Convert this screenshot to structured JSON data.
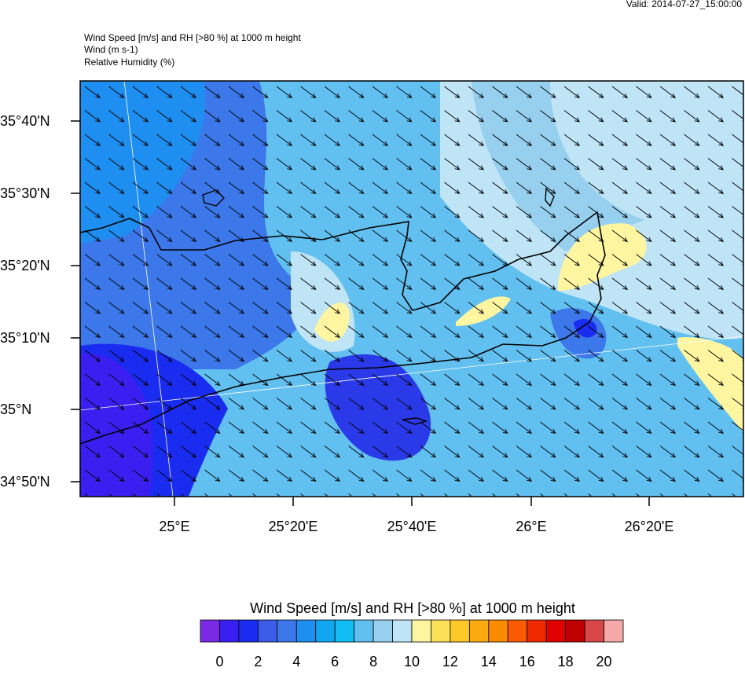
{
  "header": {
    "valid": "Valid: 2014-07-27_15:00:00",
    "lines": [
      "Wind Speed [m/s] and RH [>80 %] at 1000 m height",
      "Wind   (m s-1)",
      "Relative Humidity   (%)"
    ]
  },
  "axes": {
    "lat_labels": [
      "35°40'N",
      "35°30'N",
      "35°20'N",
      "35°10'N",
      "35°N",
      "34°50'N"
    ],
    "lon_labels": [
      "25°E",
      "25°20'E",
      "25°40'E",
      "26°E",
      "26°20'E"
    ]
  },
  "colorbar": {
    "title": "Wind Speed [m/s] and RH [>80 %] at 1000 m height",
    "colors": [
      "#7b2be6",
      "#3a1ff0",
      "#1a2cf0",
      "#3a5ce6",
      "#3d78ea",
      "#1e8ef0",
      "#12a6f0",
      "#12bdf5",
      "#62c0f0",
      "#96d0ee",
      "#bfe4f5",
      "#fdf5a0",
      "#fde05a",
      "#fdc829",
      "#fbab10",
      "#fa8a00",
      "#fa5a00",
      "#f02a00",
      "#e00000",
      "#c00000",
      "#d84848",
      "#f7a8a8"
    ],
    "labels": [
      0,
      2,
      4,
      6,
      8,
      10,
      12,
      14,
      16,
      18,
      20
    ]
  }
}
